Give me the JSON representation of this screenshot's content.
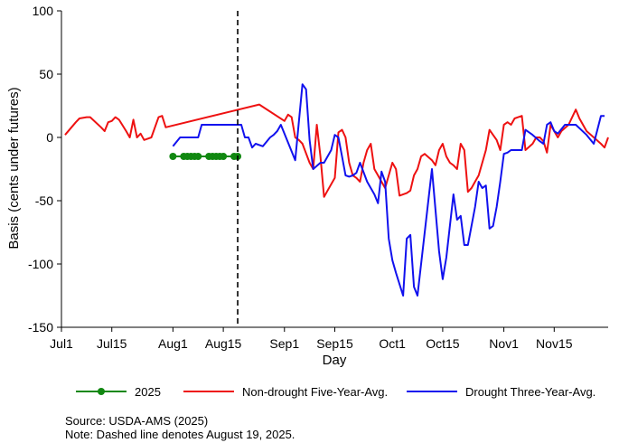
{
  "chart_data": {
    "type": "line",
    "title": "",
    "xlabel": "Day",
    "ylabel": "Basis (cents under futures)",
    "xlim": [
      "2025-07-01",
      "2025-11-30"
    ],
    "ylim": [
      -150,
      100
    ],
    "y_ticks": [
      100,
      50,
      0,
      -50,
      -100,
      -150
    ],
    "x_ticks": [
      {
        "date": "2025-07-01",
        "label": "Jul1"
      },
      {
        "date": "2025-07-15",
        "label": "Jul15"
      },
      {
        "date": "2025-08-01",
        "label": "Aug1"
      },
      {
        "date": "2025-08-15",
        "label": "Aug15"
      },
      {
        "date": "2025-09-01",
        "label": "Sep1"
      },
      {
        "date": "2025-09-15",
        "label": "Sep15"
      },
      {
        "date": "2025-10-01",
        "label": "Oct1"
      },
      {
        "date": "2025-10-15",
        "label": "Oct15"
      },
      {
        "date": "2025-11-01",
        "label": "Nov1"
      },
      {
        "date": "2025-11-15",
        "label": "Nov15"
      }
    ],
    "vline": {
      "date": "2025-08-19",
      "style": "dashed",
      "color": "#000000"
    },
    "legend_position": "bottom",
    "series": [
      {
        "name": "2025",
        "color": "#118811",
        "marker": "circle",
        "points": [
          [
            "2025-08-01",
            -15
          ],
          [
            "2025-08-04",
            -15
          ],
          [
            "2025-08-05",
            -15
          ],
          [
            "2025-08-06",
            -15
          ],
          [
            "2025-08-07",
            -15
          ],
          [
            "2025-08-08",
            -15
          ],
          [
            "2025-08-11",
            -15
          ],
          [
            "2025-08-12",
            -15
          ],
          [
            "2025-08-13",
            -15
          ],
          [
            "2025-08-14",
            -15
          ],
          [
            "2025-08-15",
            -15
          ],
          [
            "2025-08-18",
            -15
          ],
          [
            "2025-08-19",
            -15
          ]
        ]
      },
      {
        "name": "Non-drought Five-Year-Avg.",
        "color": "#ee1111",
        "points": [
          [
            "2025-07-02",
            2
          ],
          [
            "2025-07-05",
            12
          ],
          [
            "2025-07-06",
            15
          ],
          [
            "2025-07-08",
            16
          ],
          [
            "2025-07-09",
            16
          ],
          [
            "2025-07-12",
            8
          ],
          [
            "2025-07-13",
            5
          ],
          [
            "2025-07-14",
            12
          ],
          [
            "2025-07-15",
            13
          ],
          [
            "2025-07-16",
            16
          ],
          [
            "2025-07-17",
            14
          ],
          [
            "2025-07-19",
            5
          ],
          [
            "2025-07-20",
            0
          ],
          [
            "2025-07-21",
            14
          ],
          [
            "2025-07-22",
            0
          ],
          [
            "2025-07-23",
            3
          ],
          [
            "2025-07-24",
            -2
          ],
          [
            "2025-07-25",
            -1
          ],
          [
            "2025-07-26",
            0
          ],
          [
            "2025-07-28",
            16
          ],
          [
            "2025-07-29",
            17
          ],
          [
            "2025-07-30",
            8
          ],
          [
            "2025-08-25",
            26
          ],
          [
            "2025-09-01",
            13
          ],
          [
            "2025-09-02",
            18
          ],
          [
            "2025-09-03",
            16
          ],
          [
            "2025-09-04",
            0
          ],
          [
            "2025-09-05",
            -2
          ],
          [
            "2025-09-06",
            -5
          ],
          [
            "2025-09-08",
            -20
          ],
          [
            "2025-09-09",
            -25
          ],
          [
            "2025-09-10",
            10
          ],
          [
            "2025-09-11",
            -15
          ],
          [
            "2025-09-12",
            -47
          ],
          [
            "2025-09-13",
            -42
          ],
          [
            "2025-09-15",
            -32
          ],
          [
            "2025-09-16",
            4
          ],
          [
            "2025-09-17",
            6
          ],
          [
            "2025-09-18",
            0
          ],
          [
            "2025-09-19",
            -20
          ],
          [
            "2025-09-20",
            -30
          ],
          [
            "2025-09-21",
            -32
          ],
          [
            "2025-09-22",
            -35
          ],
          [
            "2025-09-23",
            -20
          ],
          [
            "2025-09-24",
            -10
          ],
          [
            "2025-09-25",
            -5
          ],
          [
            "2025-09-26",
            -25
          ],
          [
            "2025-09-27",
            -30
          ],
          [
            "2025-09-28",
            -35
          ],
          [
            "2025-09-29",
            -40
          ],
          [
            "2025-09-30",
            -30
          ],
          [
            "2025-10-01",
            -20
          ],
          [
            "2025-10-02",
            -25
          ],
          [
            "2025-10-03",
            -46
          ],
          [
            "2025-10-05",
            -44
          ],
          [
            "2025-10-06",
            -42
          ],
          [
            "2025-10-07",
            -30
          ],
          [
            "2025-10-08",
            -25
          ],
          [
            "2025-10-09",
            -15
          ],
          [
            "2025-10-10",
            -13
          ],
          [
            "2025-10-12",
            -18
          ],
          [
            "2025-10-13",
            -22
          ],
          [
            "2025-10-14",
            -10
          ],
          [
            "2025-10-15",
            -5
          ],
          [
            "2025-10-16",
            -15
          ],
          [
            "2025-10-17",
            -20
          ],
          [
            "2025-10-18",
            -22
          ],
          [
            "2025-10-19",
            -25
          ],
          [
            "2025-10-20",
            -5
          ],
          [
            "2025-10-21",
            -10
          ],
          [
            "2025-10-22",
            -43
          ],
          [
            "2025-10-23",
            -40
          ],
          [
            "2025-10-24",
            -35
          ],
          [
            "2025-10-25",
            -30
          ],
          [
            "2025-10-26",
            -20
          ],
          [
            "2025-10-27",
            -10
          ],
          [
            "2025-10-28",
            6
          ],
          [
            "2025-10-29",
            2
          ],
          [
            "2025-10-30",
            -2
          ],
          [
            "2025-10-31",
            -10
          ],
          [
            "2025-11-01",
            10
          ],
          [
            "2025-11-02",
            12
          ],
          [
            "2025-11-03",
            10
          ],
          [
            "2025-11-04",
            15
          ],
          [
            "2025-11-05",
            16
          ],
          [
            "2025-11-06",
            17
          ],
          [
            "2025-11-07",
            -10
          ],
          [
            "2025-11-09",
            -5
          ],
          [
            "2025-11-10",
            0
          ],
          [
            "2025-11-11",
            0
          ],
          [
            "2025-11-12",
            -3
          ],
          [
            "2025-11-13",
            -12
          ],
          [
            "2025-11-14",
            10
          ],
          [
            "2025-11-15",
            5
          ],
          [
            "2025-11-16",
            0
          ],
          [
            "2025-11-17",
            5
          ],
          [
            "2025-11-19",
            10
          ],
          [
            "2025-11-21",
            22
          ],
          [
            "2025-11-22",
            15
          ],
          [
            "2025-11-24",
            5
          ],
          [
            "2025-11-26",
            0
          ],
          [
            "2025-11-28",
            -5
          ],
          [
            "2025-11-29",
            -8
          ],
          [
            "2025-11-30",
            0
          ]
        ]
      },
      {
        "name": "Drought Three-Year-Avg.",
        "color": "#1111ee",
        "points": [
          [
            "2025-08-01",
            -7
          ],
          [
            "2025-08-03",
            0
          ],
          [
            "2025-08-05",
            0
          ],
          [
            "2025-08-07",
            0
          ],
          [
            "2025-08-08",
            0
          ],
          [
            "2025-08-09",
            10
          ],
          [
            "2025-08-12",
            10
          ],
          [
            "2025-08-15",
            10
          ],
          [
            "2025-08-20",
            10
          ],
          [
            "2025-08-21",
            0
          ],
          [
            "2025-08-22",
            0
          ],
          [
            "2025-08-23",
            -8
          ],
          [
            "2025-08-24",
            -5
          ],
          [
            "2025-08-26",
            -7
          ],
          [
            "2025-08-28",
            0
          ],
          [
            "2025-08-29",
            2
          ],
          [
            "2025-08-30",
            5
          ],
          [
            "2025-08-31",
            10
          ],
          [
            "2025-09-04",
            -18
          ],
          [
            "2025-09-06",
            42
          ],
          [
            "2025-09-07",
            38
          ],
          [
            "2025-09-08",
            -2
          ],
          [
            "2025-09-09",
            -25
          ],
          [
            "2025-09-11",
            -20
          ],
          [
            "2025-09-12",
            -20
          ],
          [
            "2025-09-14",
            -10
          ],
          [
            "2025-09-15",
            2
          ],
          [
            "2025-09-16",
            0
          ],
          [
            "2025-09-17",
            -15
          ],
          [
            "2025-09-18",
            -30
          ],
          [
            "2025-09-19",
            -31
          ],
          [
            "2025-09-20",
            -30
          ],
          [
            "2025-09-21",
            -28
          ],
          [
            "2025-09-22",
            -20
          ],
          [
            "2025-09-24",
            -35
          ],
          [
            "2025-09-26",
            -45
          ],
          [
            "2025-09-27",
            -52
          ],
          [
            "2025-09-28",
            -27
          ],
          [
            "2025-09-29",
            -35
          ],
          [
            "2025-09-30",
            -80
          ],
          [
            "2025-10-01",
            -97
          ],
          [
            "2025-10-02",
            -107
          ],
          [
            "2025-10-04",
            -125
          ],
          [
            "2025-10-05",
            -80
          ],
          [
            "2025-10-06",
            -77
          ],
          [
            "2025-10-07",
            -118
          ],
          [
            "2025-10-08",
            -125
          ],
          [
            "2025-10-10",
            -75
          ],
          [
            "2025-10-12",
            -25
          ],
          [
            "2025-10-14",
            -90
          ],
          [
            "2025-10-15",
            -112
          ],
          [
            "2025-10-16",
            -95
          ],
          [
            "2025-10-18",
            -45
          ],
          [
            "2025-10-19",
            -65
          ],
          [
            "2025-10-20",
            -62
          ],
          [
            "2025-10-21",
            -85
          ],
          [
            "2025-10-22",
            -85
          ],
          [
            "2025-10-24",
            -55
          ],
          [
            "2025-10-25",
            -35
          ],
          [
            "2025-10-26",
            -40
          ],
          [
            "2025-10-27",
            -38
          ],
          [
            "2025-10-28",
            -72
          ],
          [
            "2025-10-29",
            -70
          ],
          [
            "2025-10-30",
            -55
          ],
          [
            "2025-10-31",
            -35
          ],
          [
            "2025-11-01",
            -13
          ],
          [
            "2025-11-02",
            -12
          ],
          [
            "2025-11-03",
            -10
          ],
          [
            "2025-11-05",
            -10
          ],
          [
            "2025-11-06",
            -10
          ],
          [
            "2025-11-07",
            6
          ],
          [
            "2025-11-09",
            2
          ],
          [
            "2025-11-11",
            -3
          ],
          [
            "2025-11-12",
            -5
          ],
          [
            "2025-11-13",
            10
          ],
          [
            "2025-11-14",
            12
          ],
          [
            "2025-11-15",
            5
          ],
          [
            "2025-11-16",
            3
          ],
          [
            "2025-11-18",
            10
          ],
          [
            "2025-11-19",
            10
          ],
          [
            "2025-11-21",
            10
          ],
          [
            "2025-11-24",
            2
          ],
          [
            "2025-11-26",
            -5
          ],
          [
            "2025-11-28",
            17
          ],
          [
            "2025-11-29",
            17
          ]
        ]
      }
    ]
  },
  "notes": {
    "source": "Source: USDA-AMS (2025)",
    "note": "Note: Dashed line denotes August 19, 2025."
  }
}
